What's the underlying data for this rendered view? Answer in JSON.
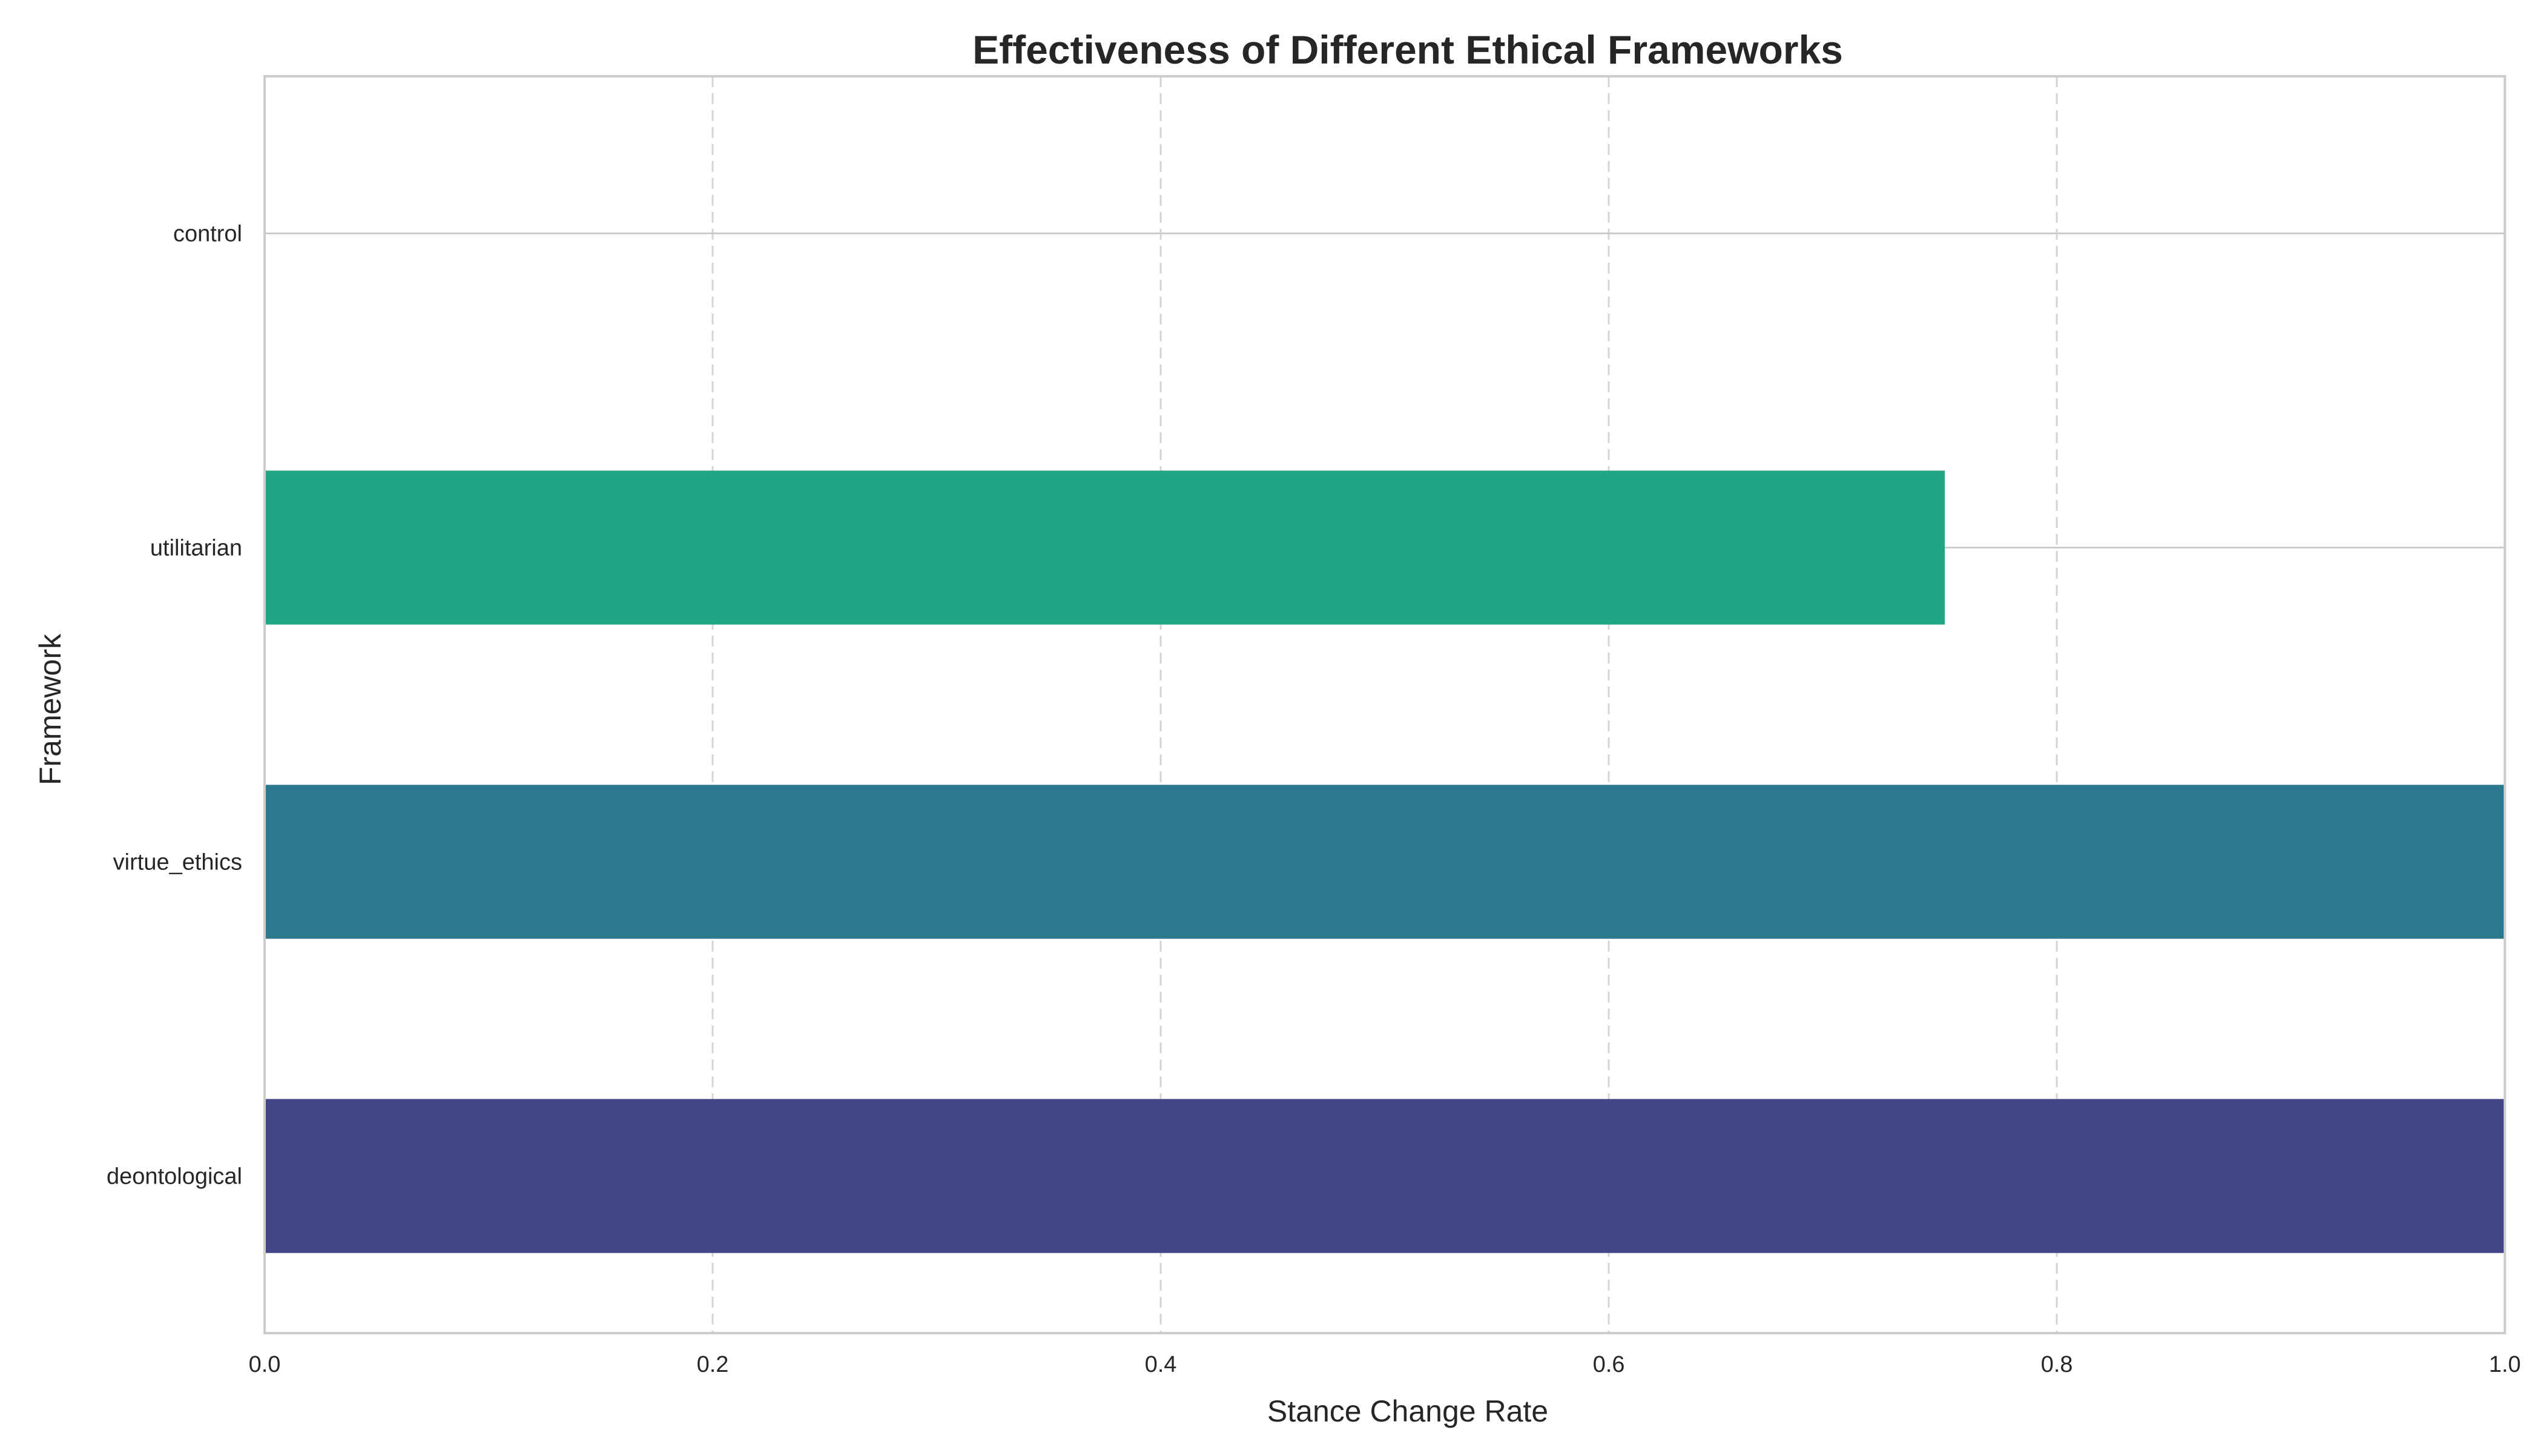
{
  "chart_data": {
    "type": "bar",
    "orientation": "horizontal",
    "title": "Effectiveness of Different Ethical Frameworks",
    "xlabel": "Stance Change Rate",
    "ylabel": "Framework",
    "categories": [
      "control",
      "utilitarian",
      "virtue_ethics",
      "deontological"
    ],
    "values": [
      0.0,
      0.75,
      1.0,
      1.0
    ],
    "colors": [
      "#21a685",
      "#21a685",
      "#2c788e",
      "#424586"
    ],
    "xlim": [
      0,
      1.0
    ],
    "xticks": [
      0.0,
      0.2,
      0.4,
      0.6,
      0.8,
      1.0
    ],
    "xtick_labels": [
      "0.0",
      "0.2",
      "0.4",
      "0.6",
      "0.8",
      "1.0"
    ],
    "grid": true,
    "grid_style": "dashed vertical, solid horizontal",
    "legend": "none"
  }
}
